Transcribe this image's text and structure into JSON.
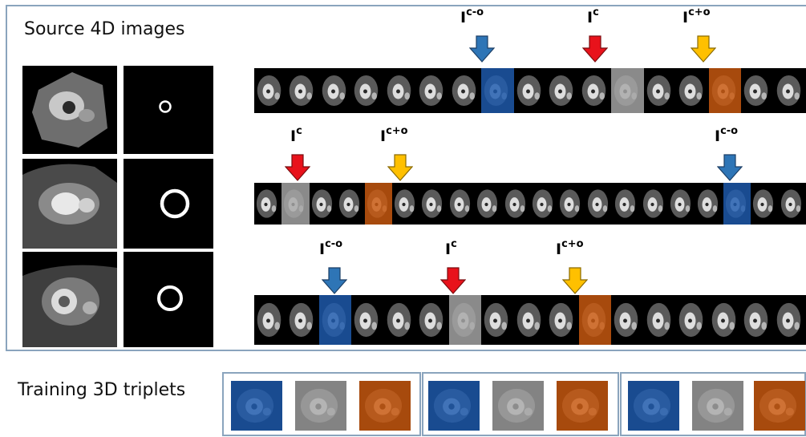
{
  "source_title": "Source 4D images",
  "training_title": "Training 3D triplets",
  "label_base": "I",
  "labels": {
    "prev": "c-o",
    "cur": "c",
    "next": "c+o"
  },
  "icons": {
    "prev_arrow": "arrow-down-blue",
    "cur_arrow": "arrow-down-red",
    "next_arrow": "arrow-down-orange"
  },
  "colors": {
    "prev": "#1f5bb0",
    "cur": "#a8a8a8",
    "next": "#cc5a10",
    "prev_arrow": "#2e75b6",
    "cur_arrow": "#e8121b",
    "next_arrow": "#ffc000",
    "box_border": "#8aa4bd"
  }
}
